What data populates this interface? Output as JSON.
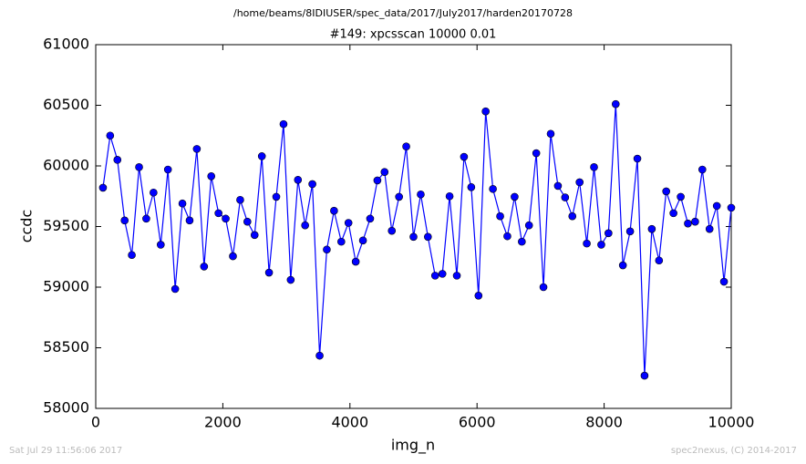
{
  "chart_data": {
    "type": "line",
    "title": "/home/beams/8IDIUSER/spec_data/2017/July2017/harden20170728",
    "subtitle": "#149: xpcsscan 10000 0.01",
    "xlabel": "img_n",
    "ylabel": "ccdc",
    "footer_left": "Sat Jul 29 11:56:06 2017",
    "footer_right": "spec2nexus, (C) 2014-2017",
    "x": [
      114,
      227,
      341,
      455,
      568,
      682,
      795,
      909,
      1023,
      1136,
      1250,
      1364,
      1477,
      1591,
      1705,
      1818,
      1932,
      2045,
      2159,
      2273,
      2386,
      2500,
      2614,
      2727,
      2841,
      2955,
      3068,
      3182,
      3295,
      3409,
      3523,
      3636,
      3750,
      3864,
      3977,
      4091,
      4205,
      4318,
      4432,
      4545,
      4659,
      4773,
      4886,
      5000,
      5114,
      5227,
      5341,
      5455,
      5568,
      5682,
      5795,
      5909,
      6023,
      6136,
      6250,
      6364,
      6477,
      6591,
      6705,
      6818,
      6932,
      7045,
      7159,
      7273,
      7386,
      7500,
      7614,
      7727,
      7841,
      7955,
      8068,
      8182,
      8295,
      8409,
      8523,
      8636,
      8750,
      8864,
      8977,
      9091,
      9205,
      9318,
      9432,
      9545,
      9659,
      9773,
      9886,
      10000
    ],
    "series": [
      {
        "name": "ccdc",
        "color": "#0000ff",
        "values": [
          59820,
          60250,
          60050,
          59550,
          59265,
          59990,
          59565,
          59780,
          59350,
          59970,
          58985,
          59690,
          59550,
          60140,
          59170,
          59915,
          59610,
          59565,
          59255,
          59720,
          59540,
          59430,
          60080,
          59120,
          59745,
          60345,
          59060,
          59885,
          59510,
          59850,
          58435,
          59310,
          59630,
          59375,
          59530,
          59210,
          59385,
          59565,
          59880,
          59950,
          59465,
          59745,
          60160,
          59415,
          59765,
          59415,
          59095,
          59110,
          59750,
          59095,
          60075,
          59825,
          58930,
          60450,
          59810,
          59585,
          59420,
          59745,
          59375,
          59510,
          60105,
          59000,
          60265,
          59835,
          59740,
          59585,
          59865,
          59360,
          59990,
          59350,
          59445,
          60510,
          59180,
          59460,
          60060,
          58270,
          59480,
          59220,
          59790,
          59610,
          59745,
          59525,
          59540,
          59970,
          59480,
          59670,
          59045,
          59655
        ]
      }
    ],
    "xlim": [
      0,
      10000
    ],
    "xticks": [
      0,
      2000,
      4000,
      6000,
      8000,
      10000
    ],
    "ylim": [
      58000,
      61000
    ],
    "yticks": [
      58000,
      58500,
      59000,
      59500,
      60000,
      60500,
      61000
    ]
  }
}
